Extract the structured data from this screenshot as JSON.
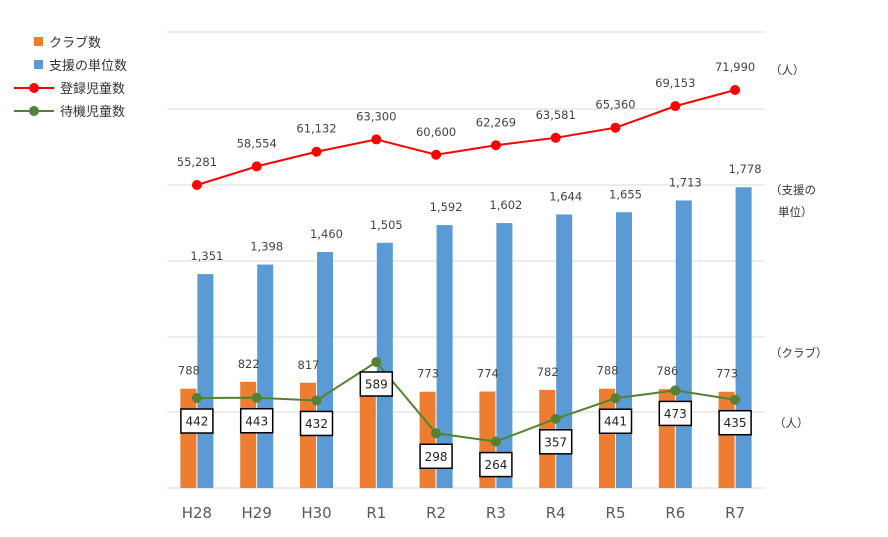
{
  "chart_data": {
    "type": "bar+line",
    "categories": [
      "H28",
      "H29",
      "H30",
      "R1",
      "R2",
      "R3",
      "R4",
      "R5",
      "R6",
      "R7"
    ],
    "series": [
      {
        "name": "クラブ数",
        "type": "bar",
        "color": "#ED7D31",
        "values": [
          788,
          822,
          817,
          757,
          773,
          774,
          782,
          788,
          786,
          773
        ]
      },
      {
        "name": "支援の単位数",
        "type": "bar",
        "color": "#5B9BD5",
        "values": [
          1351,
          1398,
          1460,
          1505,
          1592,
          1602,
          1644,
          1655,
          1713,
          1778
        ]
      },
      {
        "name": "登録児童数",
        "type": "line",
        "color": "#FF0000",
        "values": [
          55281,
          58554,
          61132,
          63300,
          60600,
          62269,
          63581,
          65360,
          69153,
          71990
        ]
      },
      {
        "name": "待機児童数",
        "type": "line",
        "color": "#548235",
        "values": [
          442,
          443,
          432,
          589,
          298,
          264,
          357,
          441,
          473,
          435
        ]
      }
    ],
    "legend": [
      {
        "label": "クラブ数",
        "kind": "bar",
        "color": "#ED7D31"
      },
      {
        "label": "支援の単位数",
        "kind": "bar",
        "color": "#5B9BD5"
      },
      {
        "label": "登録児童数",
        "kind": "line",
        "color": "#FF0000"
      },
      {
        "label": "待機児童数",
        "kind": "line",
        "color": "#548235"
      }
    ],
    "legend_position": "top-left",
    "side_labels": {
      "registered": "（人）",
      "units_line1": "（支援の",
      "units_line2": "単位）",
      "clubs": "（クラブ）",
      "waiting": "（人）"
    },
    "grid": true
  }
}
